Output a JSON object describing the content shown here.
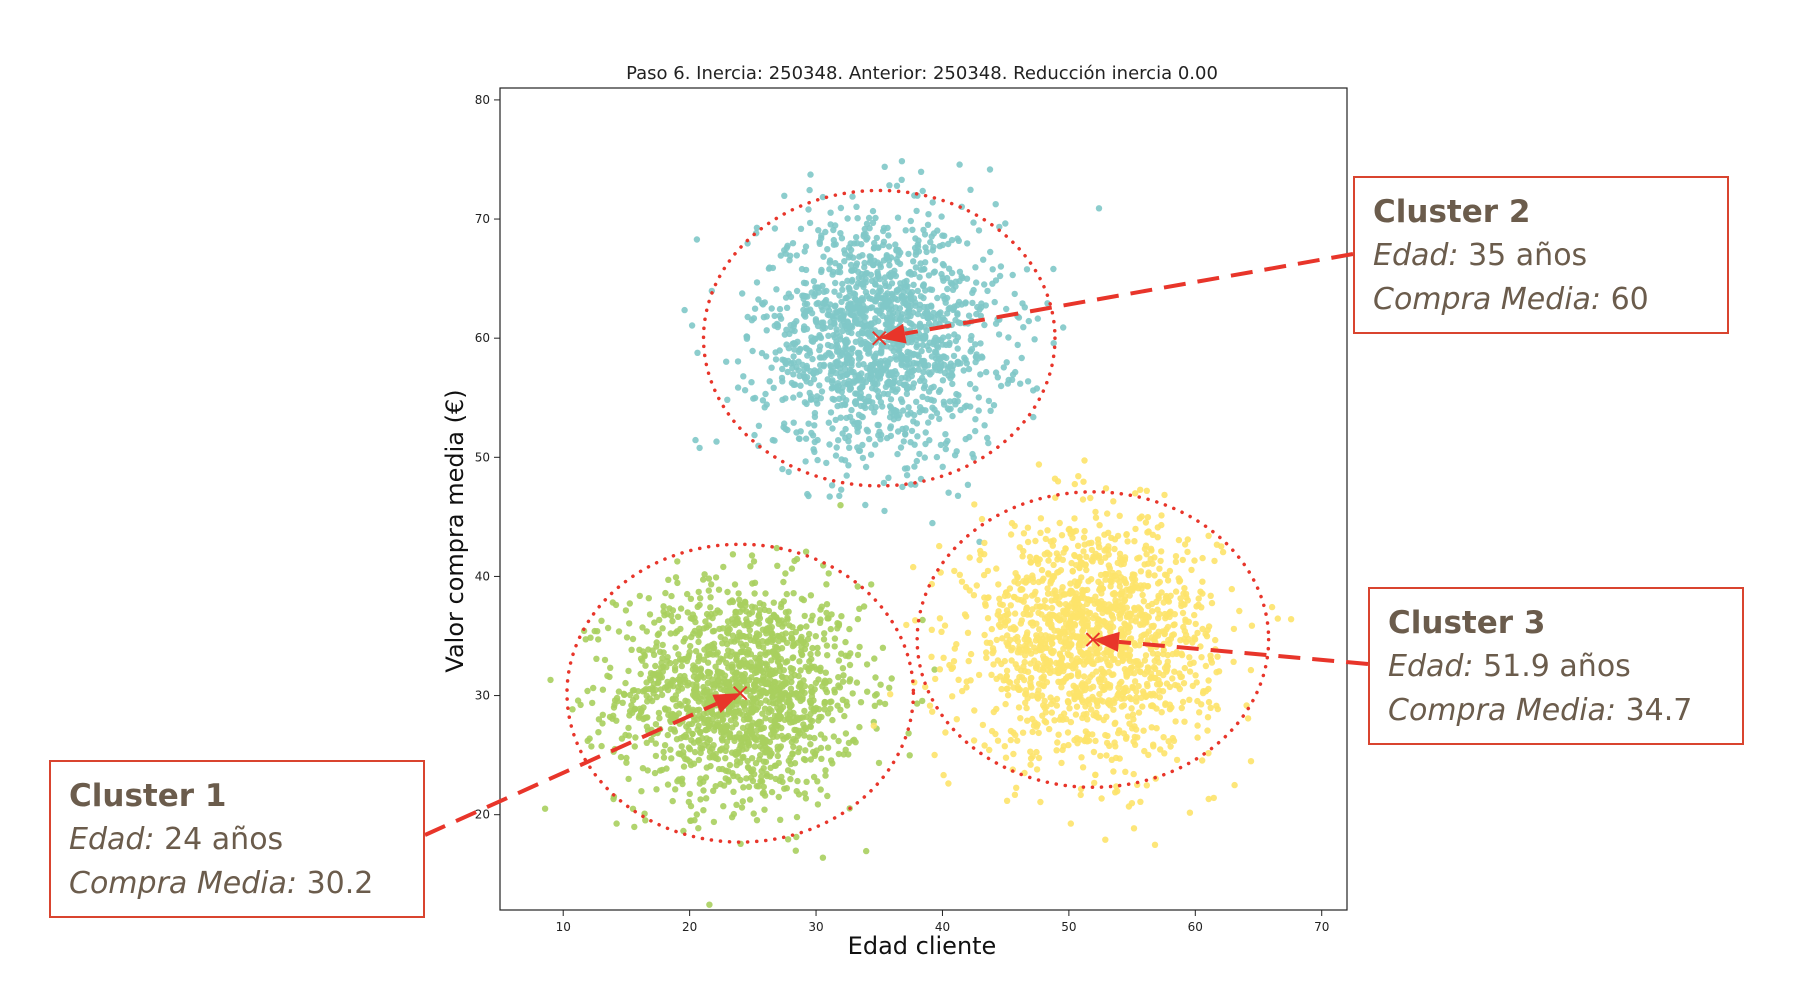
{
  "chart_data": {
    "type": "scatter",
    "title": "Paso 6. Inercia: 250348. Anterior: 250348. Reducción inercia 0.00",
    "xlabel": "Edad cliente",
    "ylabel": "Valor compra media (€)",
    "xlim": [
      5,
      72
    ],
    "ylim": [
      12,
      81
    ],
    "xticks": [
      10,
      20,
      30,
      40,
      50,
      60,
      70
    ],
    "yticks": [
      20,
      30,
      40,
      50,
      60,
      70,
      80
    ],
    "grid": false,
    "points_per_cluster": 1500,
    "series": [
      {
        "color": "#a9cf5e",
        "center": [
          24,
          30.2
        ],
        "spread": [
          4.8,
          4.6
        ],
        "circle_radius": [
          13.7,
          12.5
        ]
      },
      {
        "color": "#7fc8c8",
        "center": [
          35,
          60
        ],
        "spread": [
          4.8,
          5.0
        ],
        "circle_radius": [
          13.9,
          12.4
        ]
      },
      {
        "color": "#fde36a",
        "center": [
          51.9,
          34.7
        ],
        "spread": [
          4.8,
          4.9
        ],
        "circle_radius": [
          13.9,
          12.4
        ]
      }
    ],
    "centroid_marker": "x",
    "centroid_color": "#e8352a"
  },
  "callouts": [
    {
      "title": "Cluster 1",
      "edad_label": "Edad:",
      "edad_value": " 24 años",
      "compra_label": "Compra Media:",
      "compra_value": " 30.2"
    },
    {
      "title": "Cluster 2",
      "edad_label": "Edad:",
      "edad_value": " 35 años",
      "compra_label": "Compra Media:",
      "compra_value": " 60"
    },
    {
      "title": "Cluster 3",
      "edad_label": "Edad:",
      "edad_value": " 51.9 años",
      "compra_label": "Compra Media:",
      "compra_value": " 34.7"
    }
  ],
  "colors": {
    "annotation": "#e8352a",
    "callout_border": "#d9442f",
    "callout_text": "#6b5c4c"
  }
}
